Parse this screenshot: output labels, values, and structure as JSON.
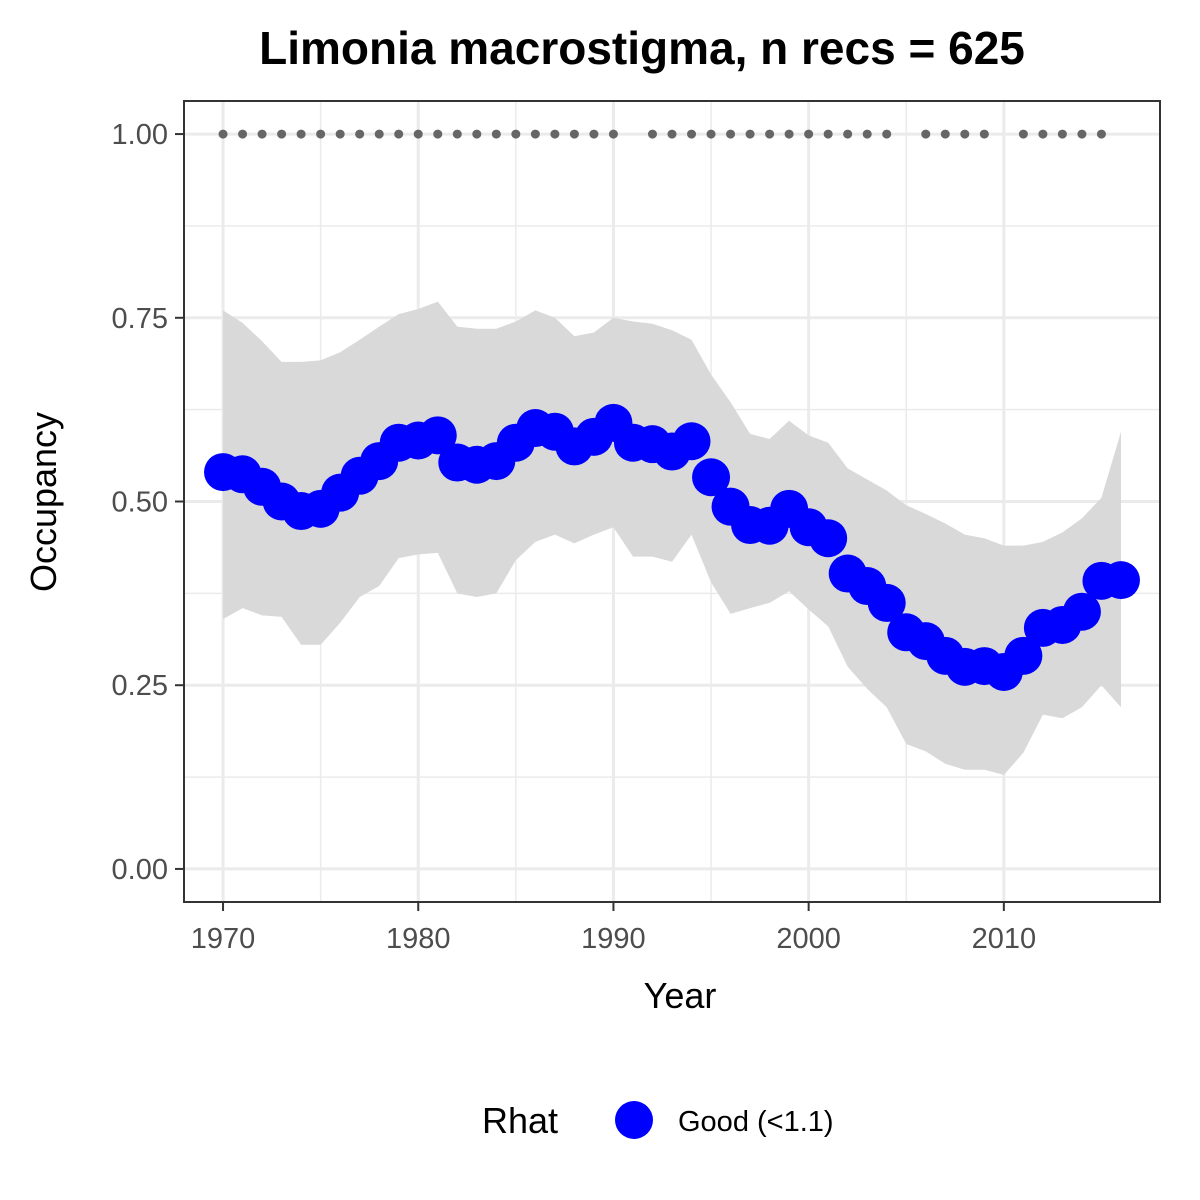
{
  "chart_data": {
    "type": "line",
    "title": "Limonia macrostigma, n recs = 625",
    "xlabel": "Year",
    "ylabel": "Occupancy",
    "xlim": [
      1968,
      2018
    ],
    "ylim": [
      -0.045,
      1.045
    ],
    "x_ticks": [
      1970,
      1980,
      1990,
      2000,
      2010
    ],
    "x_tick_labels": [
      "1970",
      "1980",
      "1990",
      "2000",
      "2010"
    ],
    "y_ticks": [
      0,
      0.25,
      0.5,
      0.75,
      1.0
    ],
    "y_tick_labels": [
      "0.00",
      "0.25",
      "0.50",
      "0.75",
      "1.00"
    ],
    "grid": true,
    "legend": {
      "title": "Rhat",
      "position": "bottom",
      "entries": [
        {
          "label": "Good (<1.1)",
          "color": "#0000ff"
        }
      ]
    },
    "colors": {
      "series": "#0000ff",
      "ribbon": "#d9d9d9",
      "record_dots": "#666666",
      "panel_border": "#333333",
      "grid": "#ebebeb"
    },
    "series": [
      {
        "x": [
          1970,
          1971,
          1972,
          1973,
          1974,
          1975,
          1976,
          1977,
          1978,
          1979,
          1980,
          1981,
          1982,
          1983,
          1984,
          1985,
          1986,
          1987,
          1988,
          1989,
          1990,
          1991,
          1992,
          1993,
          1994,
          1995,
          1996,
          1997,
          1998,
          1999,
          2000,
          2001,
          2002,
          2003,
          2004,
          2005,
          2006,
          2007,
          2008,
          2009,
          2010,
          2011,
          2012,
          2013,
          2014,
          2015,
          2016
        ],
        "values": [
          0.54,
          0.537,
          0.52,
          0.5,
          0.487,
          0.49,
          0.512,
          0.535,
          0.555,
          0.58,
          0.583,
          0.59,
          0.553,
          0.55,
          0.555,
          0.58,
          0.6,
          0.595,
          0.575,
          0.588,
          0.607,
          0.58,
          0.578,
          0.568,
          0.582,
          0.533,
          0.493,
          0.468,
          0.467,
          0.49,
          0.465,
          0.45,
          0.402,
          0.385,
          0.362,
          0.322,
          0.31,
          0.29,
          0.275,
          0.276,
          0.268,
          0.29,
          0.328,
          0.332,
          0.35,
          0.392,
          0.393
        ],
        "lower": [
          0.34,
          0.355,
          0.345,
          0.343,
          0.305,
          0.305,
          0.335,
          0.37,
          0.385,
          0.423,
          0.428,
          0.43,
          0.375,
          0.37,
          0.375,
          0.42,
          0.445,
          0.455,
          0.443,
          0.455,
          0.465,
          0.425,
          0.425,
          0.418,
          0.455,
          0.39,
          0.347,
          0.355,
          0.362,
          0.378,
          0.353,
          0.33,
          0.275,
          0.245,
          0.22,
          0.17,
          0.16,
          0.143,
          0.135,
          0.135,
          0.128,
          0.158,
          0.21,
          0.205,
          0.22,
          0.25,
          0.22
        ],
        "upper": [
          0.76,
          0.743,
          0.718,
          0.69,
          0.69,
          0.692,
          0.703,
          0.72,
          0.738,
          0.755,
          0.762,
          0.772,
          0.738,
          0.735,
          0.735,
          0.745,
          0.76,
          0.75,
          0.725,
          0.73,
          0.75,
          0.745,
          0.742,
          0.733,
          0.72,
          0.673,
          0.635,
          0.592,
          0.585,
          0.61,
          0.59,
          0.58,
          0.545,
          0.53,
          0.515,
          0.495,
          0.483,
          0.47,
          0.455,
          0.45,
          0.44,
          0.44,
          0.445,
          0.458,
          0.477,
          0.505,
          0.595
        ]
      }
    ],
    "record_years": [
      1970,
      1971,
      1972,
      1973,
      1974,
      1975,
      1976,
      1977,
      1978,
      1979,
      1980,
      1981,
      1982,
      1983,
      1984,
      1985,
      1986,
      1987,
      1988,
      1989,
      1990,
      1992,
      1993,
      1994,
      1995,
      1996,
      1997,
      1998,
      1999,
      2000,
      2001,
      2002,
      2003,
      2004,
      2006,
      2007,
      2008,
      2009,
      2011,
      2012,
      2013,
      2014,
      2015
    ],
    "record_value": 1.0
  }
}
